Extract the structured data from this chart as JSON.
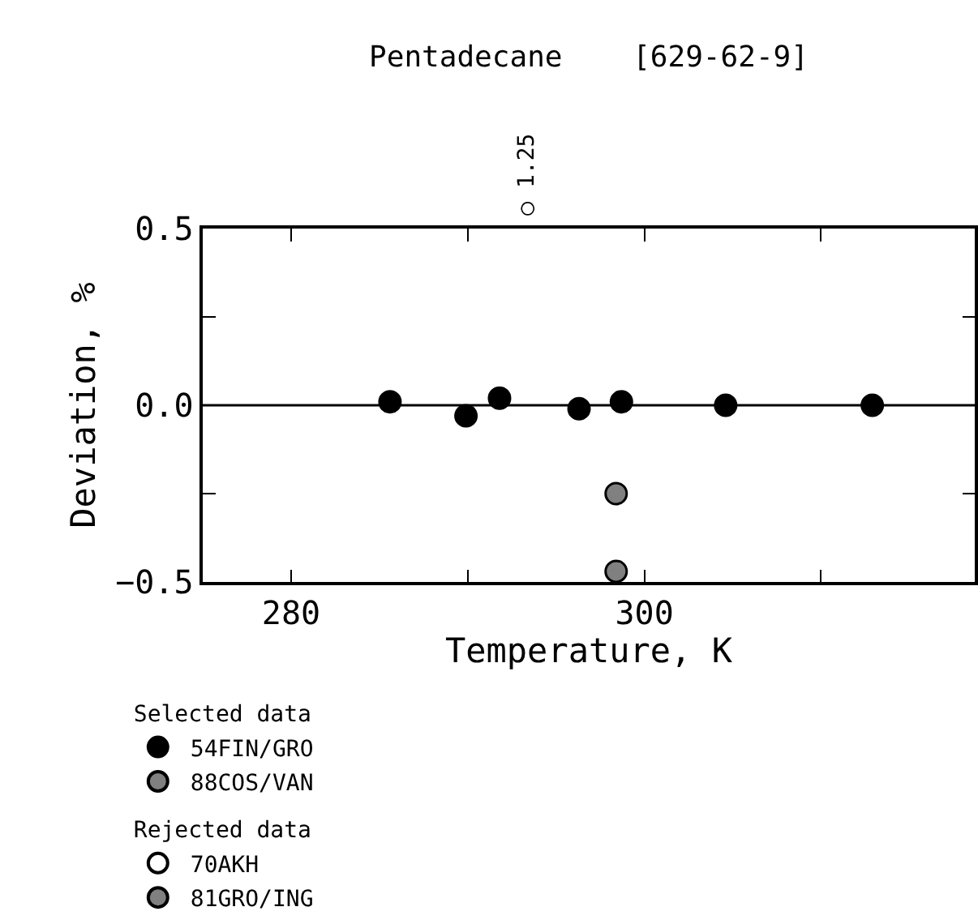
{
  "chart_data": {
    "type": "scatter",
    "title": "Pentadecane    [629-62-9]",
    "xlabel": "Temperature, K",
    "ylabel": "Deviation, %",
    "annotations": [
      "Selected data",
      "Rejected data",
      "○ 1.25"
    ],
    "series": [
      {
        "name": "54FIN/GRO",
        "color": "#000000",
        "x": [
          285.6,
          289.9,
          291.8,
          296.3,
          298.7,
          304.6,
          312.9
        ],
        "values": [
          0.01,
          -0.03,
          0.02,
          -0.01,
          0.01,
          0.0,
          0.0
        ]
      },
      {
        "name": "88COS/VAN",
        "color": "#808080",
        "x": [
          298.4
        ],
        "values": [
          -0.25
        ]
      },
      {
        "name": "70AKH",
        "color": "#ffffff"
      },
      {
        "name": "81GRO/ING",
        "color": "#808080",
        "x": [
          298.4
        ],
        "values": [
          -0.47
        ]
      }
    ],
    "ref_lines": [
      {
        "axis": "y",
        "value": 0,
        "color": "#000000"
      }
    ],
    "xlim": [
      275,
      318.7
    ],
    "xticks": [
      280,
      {
        "value": 290,
        "label": null
      },
      300,
      {
        "value": 310,
        "label": null
      }
    ],
    "ylim": [
      -0.5,
      0.5
    ],
    "yticks": [
      {
        "value": -0.5,
        "label": "−0.5"
      },
      {
        "value": -0.25,
        "label": null
      },
      {
        "value": 0,
        "label": "0.0"
      },
      {
        "value": 0.25,
        "label": null
      },
      0.5
    ],
    "marker": "circle",
    "legend": "bottom left"
  }
}
